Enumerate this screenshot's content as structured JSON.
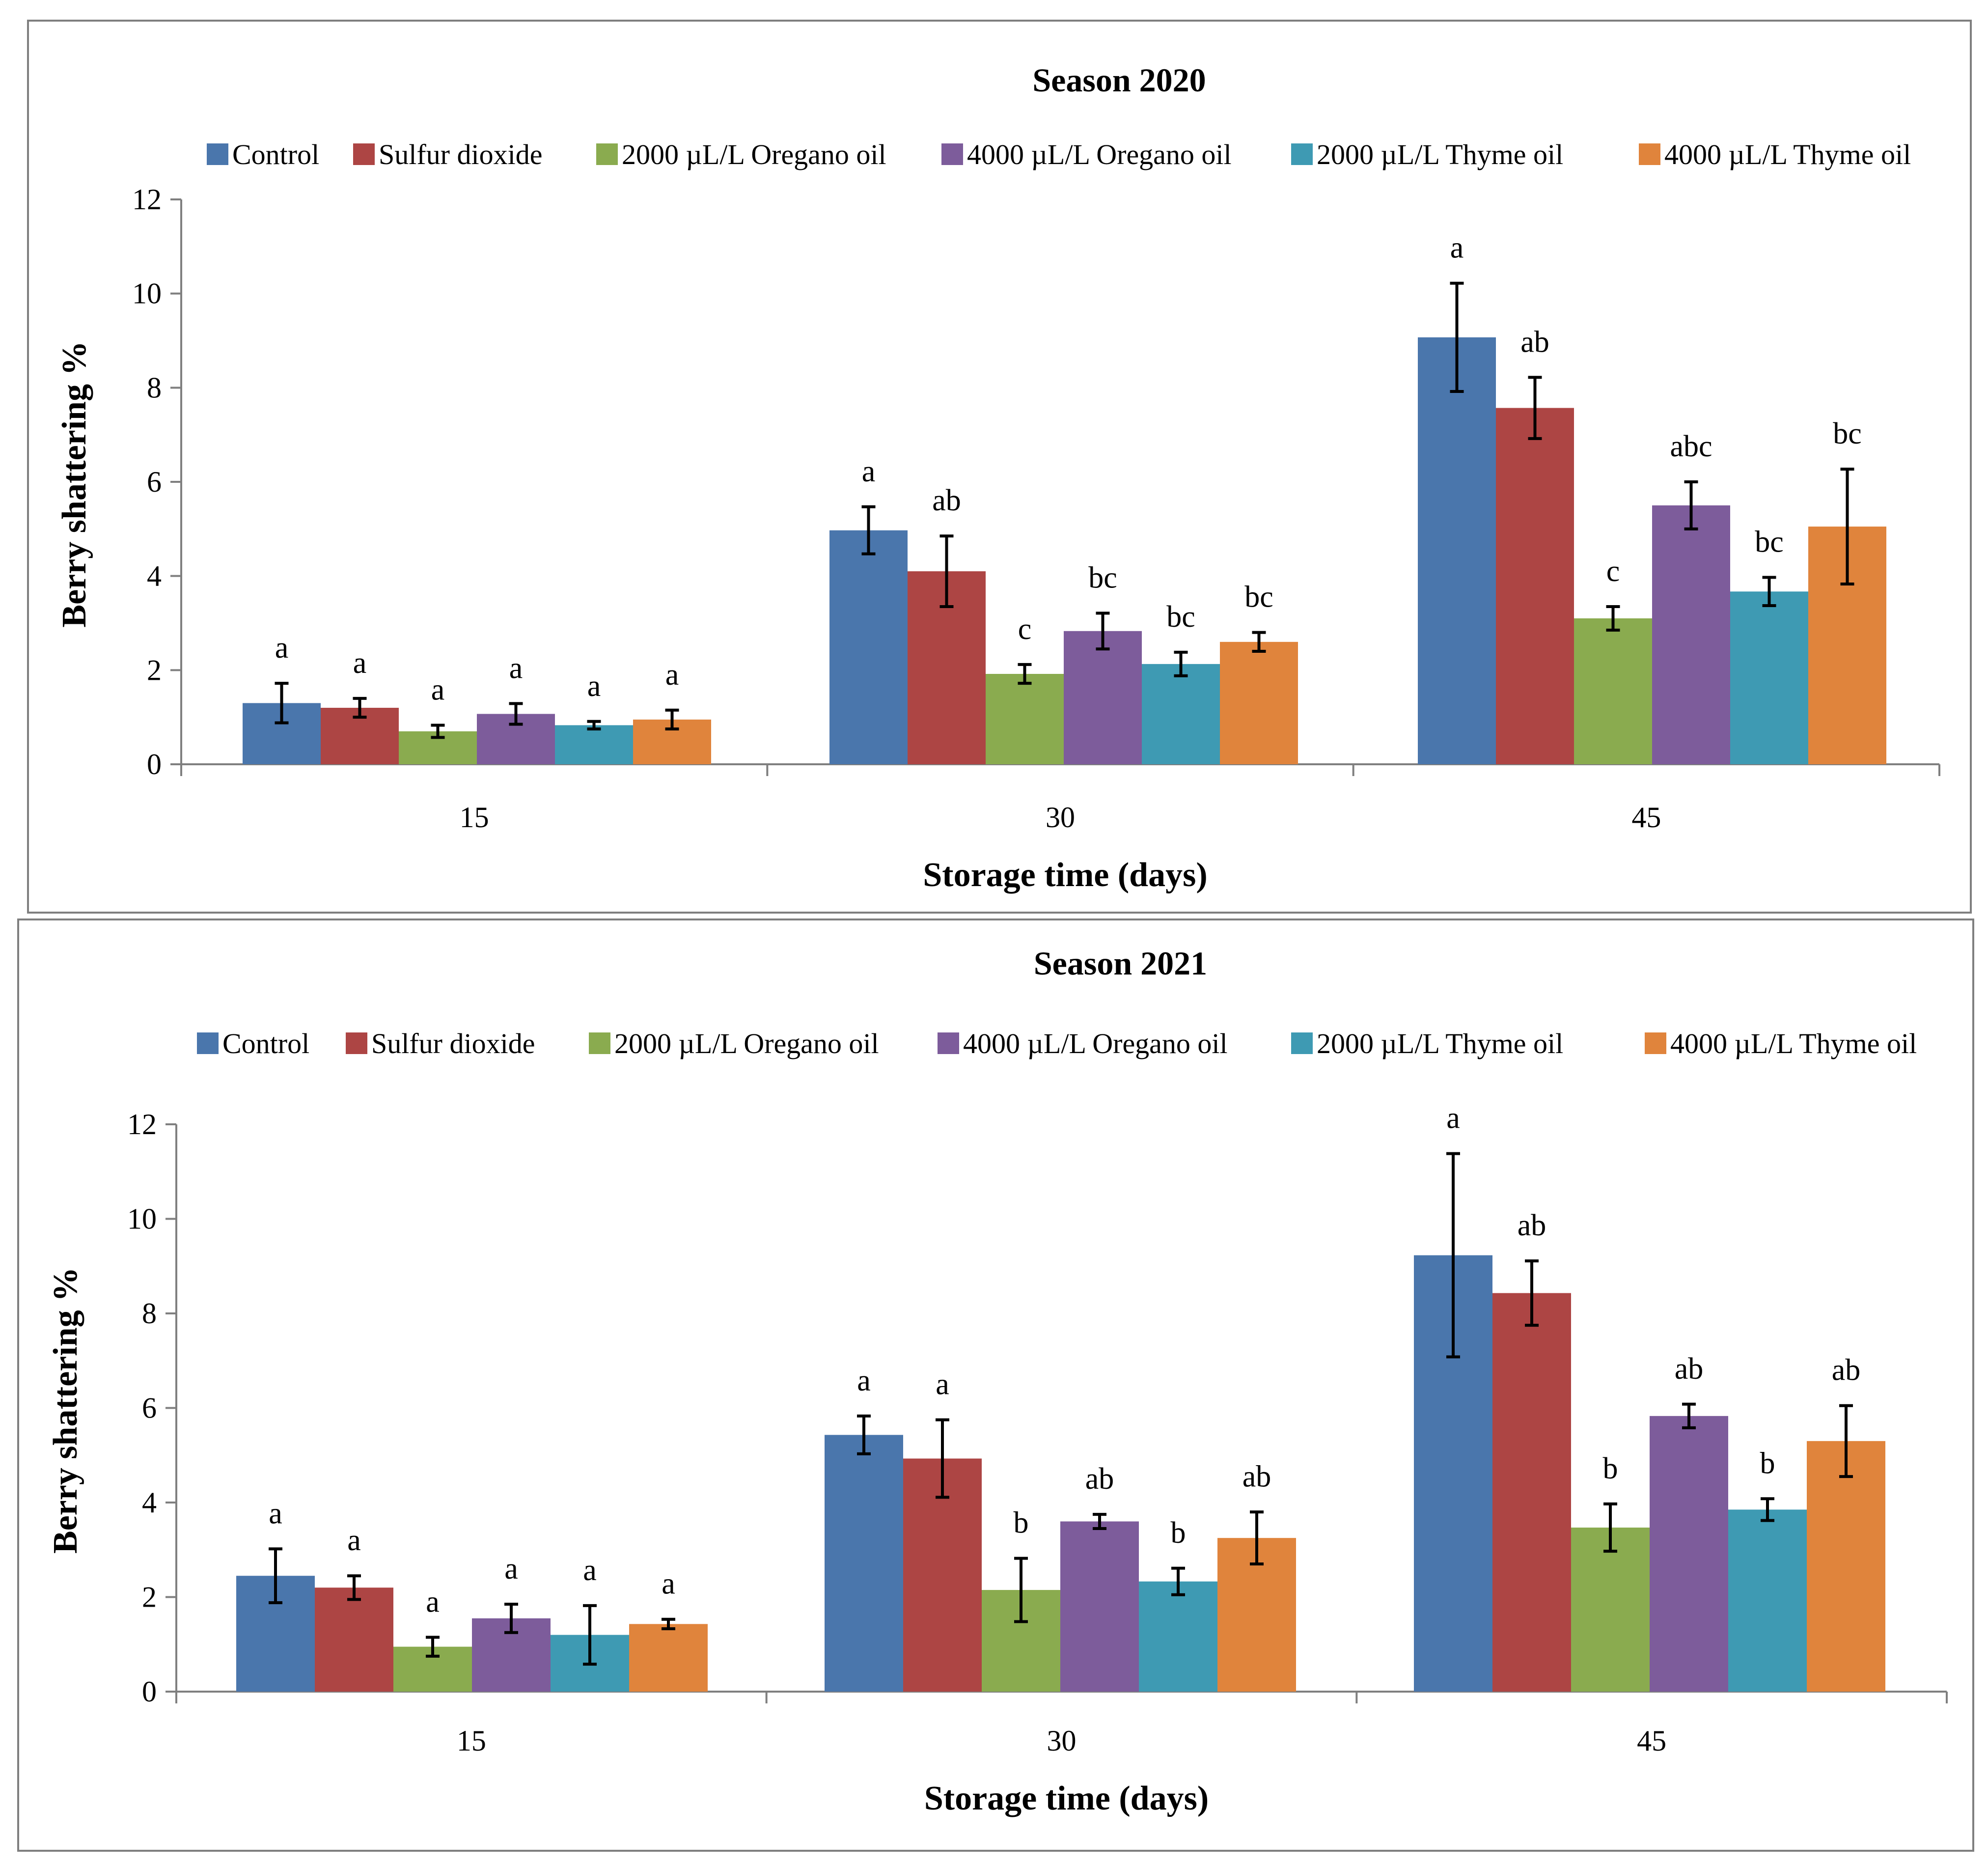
{
  "chart_data": [
    {
      "type": "bar",
      "title": "Season 2020",
      "xlabel": "Storage time (days)",
      "ylabel": "Berry shattering %",
      "ylim": [
        0,
        12
      ],
      "yticks": [
        "0",
        "2",
        "4",
        "6",
        "8",
        "10",
        "12"
      ],
      "categories": [
        "15",
        "30",
        "45"
      ],
      "legend_position": "top",
      "series": [
        {
          "name": "Control",
          "color": "#4a76ac",
          "values": [
            1.3,
            4.97,
            9.07
          ],
          "errors": [
            0.42,
            0.5,
            1.15
          ],
          "letters": [
            "a",
            "a",
            "a"
          ]
        },
        {
          "name": "Sulfur dioxide",
          "color": "#ad4544",
          "values": [
            1.2,
            4.1,
            7.57
          ],
          "errors": [
            0.2,
            0.75,
            0.65
          ],
          "letters": [
            "a",
            "ab",
            "ab"
          ]
        },
        {
          "name": "2000 µL/L Oregano oil",
          "color": "#8aab4f",
          "values": [
            0.7,
            1.92,
            3.1
          ],
          "errors": [
            0.13,
            0.2,
            0.25
          ],
          "letters": [
            "a",
            "c",
            "c"
          ]
        },
        {
          "name": "4000 µL/L Oregano oil",
          "color": "#7d5c9b",
          "values": [
            1.07,
            2.83,
            5.5
          ],
          "errors": [
            0.22,
            0.38,
            0.5
          ],
          "letters": [
            "a",
            "bc",
            "abc"
          ]
        },
        {
          "name": "2000 µL/L Thyme oil",
          "color": "#3e9ab3",
          "values": [
            0.83,
            2.13,
            3.67
          ],
          "errors": [
            0.08,
            0.25,
            0.3
          ],
          "letters": [
            "a",
            "bc",
            "bc"
          ]
        },
        {
          "name": "4000 µL/L Thyme oil",
          "color": "#e0843c",
          "values": [
            0.95,
            2.6,
            5.05
          ],
          "errors": [
            0.2,
            0.2,
            1.22
          ],
          "letters": [
            "a",
            "bc",
            "bc"
          ]
        }
      ]
    },
    {
      "type": "bar",
      "title": "Season 2021",
      "xlabel": "Storage time (days)",
      "ylabel": "Berry shattering %",
      "ylim": [
        0,
        12
      ],
      "yticks": [
        "0",
        "2",
        "4",
        "6",
        "8",
        "10",
        "12"
      ],
      "categories": [
        "15",
        "30",
        "45"
      ],
      "legend_position": "top",
      "series": [
        {
          "name": "Control",
          "color": "#4a76ac",
          "values": [
            2.45,
            5.43,
            9.23
          ],
          "errors": [
            0.57,
            0.4,
            2.15
          ],
          "letters": [
            "a",
            "a",
            "a"
          ]
        },
        {
          "name": "Sulfur dioxide",
          "color": "#ad4544",
          "values": [
            2.2,
            4.93,
            8.43
          ],
          "errors": [
            0.25,
            0.82,
            0.68
          ],
          "letters": [
            "a",
            "a",
            "ab"
          ]
        },
        {
          "name": "2000 µL/L Oregano oil",
          "color": "#8aab4f",
          "values": [
            0.95,
            2.15,
            3.47
          ],
          "errors": [
            0.2,
            0.67,
            0.5
          ],
          "letters": [
            "a",
            "b",
            "b"
          ]
        },
        {
          "name": "4000 µL/L Oregano oil",
          "color": "#7d5c9b",
          "values": [
            1.55,
            3.6,
            5.83
          ],
          "errors": [
            0.3,
            0.15,
            0.25
          ],
          "letters": [
            "a",
            "ab",
            "ab"
          ]
        },
        {
          "name": "2000 µL/L Thyme oil",
          "color": "#3e9ab3",
          "values": [
            1.2,
            2.33,
            3.85
          ],
          "errors": [
            0.62,
            0.28,
            0.23
          ],
          "letters": [
            "a",
            "b",
            "b"
          ]
        },
        {
          "name": "4000 µL/L Thyme oil",
          "color": "#e0843c",
          "values": [
            1.43,
            3.25,
            5.3
          ],
          "errors": [
            0.1,
            0.55,
            0.75
          ],
          "letters": [
            "a",
            "ab",
            "ab"
          ]
        }
      ]
    }
  ]
}
